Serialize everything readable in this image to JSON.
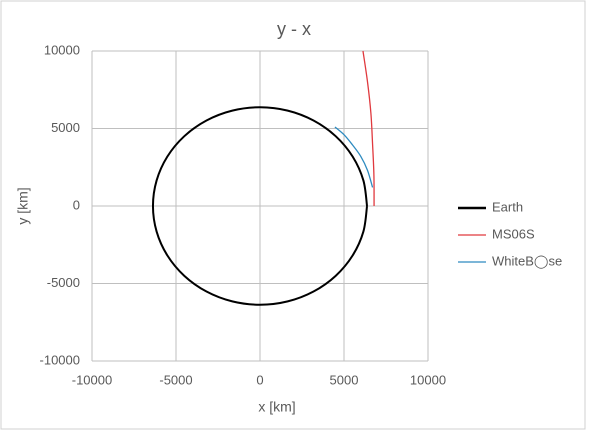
{
  "chart_data": {
    "type": "scatter",
    "title": "y - x",
    "x_label": "x [km]",
    "y_label": "y [km]",
    "xlim": [
      -10000,
      10000
    ],
    "ylim": [
      -10000,
      10000
    ],
    "xticks": [
      -10000,
      -5000,
      0,
      5000,
      10000
    ],
    "yticks": [
      -10000,
      -5000,
      0,
      5000,
      10000
    ],
    "grid": true,
    "legend": "right",
    "series": [
      {
        "name": "Earth",
        "color": "#000000",
        "x": [
          6371,
          6154,
          5517,
          4505,
          3186,
          1649,
          0,
          -1649,
          -3186,
          -4505,
          -5517,
          -6154,
          -6371,
          -6154,
          -5517,
          -4505,
          -3186,
          -1649,
          0,
          1649,
          3186,
          4505,
          5517,
          6154,
          6371
        ],
        "values": [
          0,
          1649,
          3186,
          4505,
          5517,
          6154,
          6371,
          6154,
          5517,
          4505,
          3186,
          1649,
          0,
          -1649,
          -3186,
          -4505,
          -5517,
          -6154,
          -6371,
          -6154,
          -5517,
          -4505,
          -3186,
          -1649,
          0
        ]
      },
      {
        "name": "MS06S",
        "color": "#e0393e",
        "x": [
          6130,
          6400,
          6600,
          6700,
          6780,
          6790
        ],
        "values": [
          10000,
          8000,
          6000,
          4000,
          2000,
          0
        ]
      },
      {
        "name": "WhiteB◯se",
        "color": "#2e8bc0",
        "x": [
          4460,
          5000,
          5500,
          6000,
          6400,
          6700
        ],
        "values": [
          5100,
          4600,
          3950,
          3200,
          2300,
          1200
        ]
      }
    ]
  }
}
